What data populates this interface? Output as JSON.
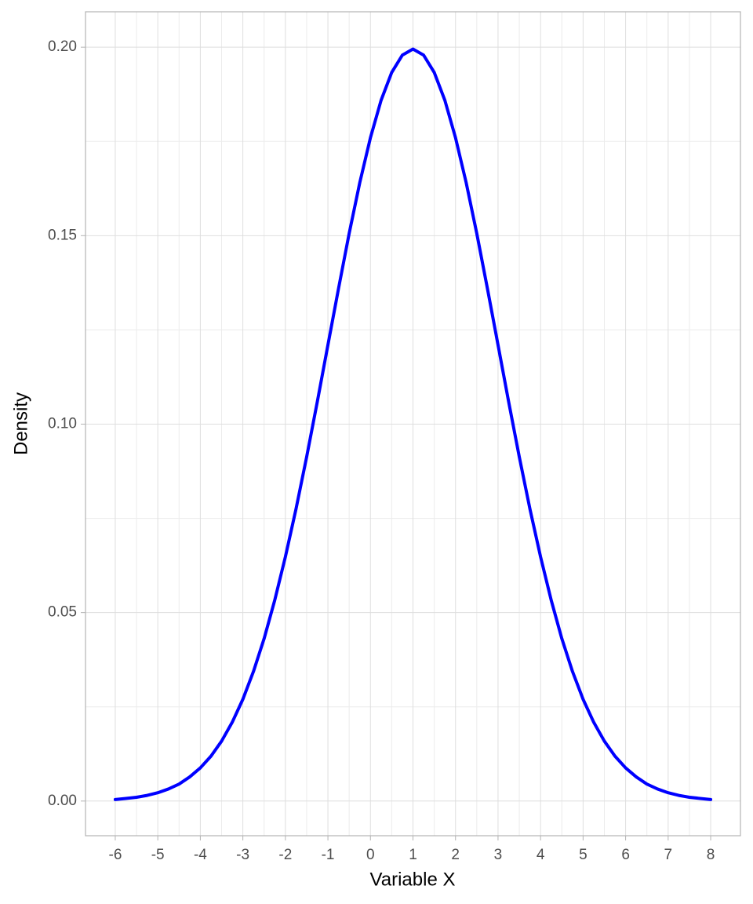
{
  "chart_data": {
    "type": "line",
    "x_label": "Variable X",
    "y_label": "Density",
    "x": [
      -6,
      -5.75,
      -5.5,
      -5.25,
      -5,
      -4.75,
      -4.5,
      -4.25,
      -4,
      -3.75,
      -3.5,
      -3.25,
      -3,
      -2.75,
      -2.5,
      -2.25,
      -2,
      -1.75,
      -1.5,
      -1.25,
      -1,
      -0.75,
      -0.5,
      -0.25,
      0,
      0.25,
      0.5,
      0.75,
      1,
      1.25,
      1.5,
      1.75,
      2,
      2.25,
      2.5,
      2.75,
      3,
      3.25,
      3.5,
      3.75,
      4,
      4.25,
      4.5,
      4.75,
      5,
      5.25,
      5.5,
      5.75,
      6,
      6.25,
      6.5,
      6.75,
      7,
      7.25,
      7.5,
      7.75,
      8
    ],
    "series": [
      {
        "color": "#0000ff",
        "values": [
          0.0004,
          0.0007,
          0.001,
          0.0015,
          0.0022,
          0.0032,
          0.0045,
          0.0064,
          0.0088,
          0.0119,
          0.0159,
          0.0209,
          0.027,
          0.0344,
          0.0431,
          0.0533,
          0.0648,
          0.0775,
          0.0913,
          0.1059,
          0.121,
          0.136,
          0.1506,
          0.1641,
          0.176,
          0.1859,
          0.1933,
          0.1979,
          0.1995,
          0.1979,
          0.1933,
          0.1859,
          0.176,
          0.1641,
          0.1506,
          0.136,
          0.121,
          0.1059,
          0.0913,
          0.0775,
          0.0648,
          0.0533,
          0.0431,
          0.0344,
          0.027,
          0.0209,
          0.0159,
          0.0119,
          0.0088,
          0.0064,
          0.0045,
          0.0032,
          0.0022,
          0.0015,
          0.001,
          0.0007,
          0.0004
        ]
      }
    ],
    "xlim": [
      -6.7,
      8.7
    ],
    "ylim": [
      -0.0092,
      0.2094
    ],
    "xticks": [
      -6,
      -5,
      -4,
      -3,
      -2,
      -1,
      0,
      1,
      2,
      3,
      4,
      5,
      6,
      7,
      8
    ],
    "yticks": [
      {
        "value": 0,
        "label": "0.00"
      },
      {
        "value": 0.05,
        "label": "0.05"
      },
      {
        "value": 0.1,
        "label": "0.10"
      },
      {
        "value": 0.15,
        "label": "0.15"
      },
      {
        "value": 0.2,
        "label": "0.20"
      }
    ],
    "grid": true
  }
}
